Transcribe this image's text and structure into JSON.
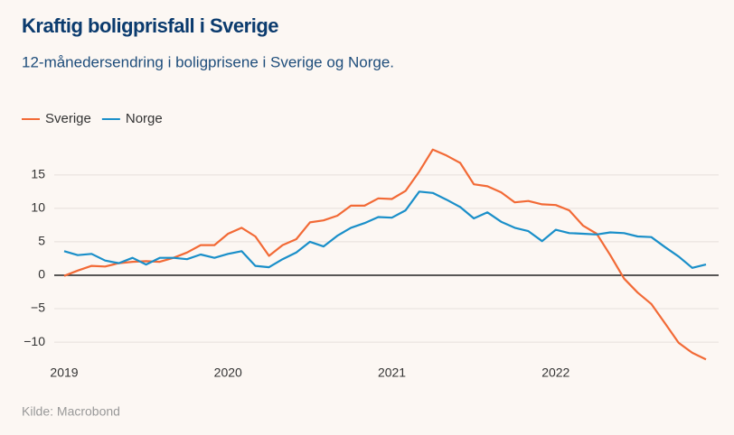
{
  "chart_data": {
    "type": "line",
    "title": "Kraftig boligprisfall i Sverige",
    "subtitle": "12-månedersendring i boligprisene i Sverige og Norge.",
    "source": "Kilde: Macrobond",
    "x": [
      2019,
      2019.083,
      2019.167,
      2019.25,
      2019.333,
      2019.417,
      2019.5,
      2019.583,
      2019.667,
      2019.75,
      2019.833,
      2019.917,
      2020,
      2020.083,
      2020.167,
      2020.25,
      2020.333,
      2020.417,
      2020.5,
      2020.583,
      2020.667,
      2020.75,
      2020.833,
      2020.917,
      2021,
      2021.083,
      2021.167,
      2021.25,
      2021.333,
      2021.417,
      2021.5,
      2021.583,
      2021.667,
      2021.75,
      2021.833,
      2021.917,
      2022,
      2022.083,
      2022.167,
      2022.25,
      2022.333,
      2022.417,
      2022.5,
      2022.583,
      2022.667,
      2022.75,
      2022.833,
      2022.917
    ],
    "series": [
      {
        "name": "Sverige",
        "color": "#f26a36",
        "values": [
          -0.1,
          0.7,
          1.4,
          1.3,
          1.8,
          2.0,
          2.1,
          2.0,
          2.6,
          3.4,
          4.5,
          4.5,
          6.2,
          7.1,
          5.8,
          2.9,
          4.5,
          5.4,
          7.9,
          8.2,
          8.9,
          10.4,
          10.4,
          11.5,
          11.4,
          12.6,
          15.5,
          18.8,
          17.9,
          16.8,
          13.6,
          13.3,
          12.4,
          10.9,
          11.1,
          10.6,
          10.5,
          9.7,
          7.4,
          6.2,
          3.0,
          -0.5,
          -2.6,
          -4.3,
          -7.2,
          -10.1,
          -11.6,
          -12.6
        ]
      },
      {
        "name": "Norge",
        "color": "#1a8fc9",
        "values": [
          3.6,
          3.0,
          3.2,
          2.2,
          1.8,
          2.6,
          1.6,
          2.6,
          2.6,
          2.4,
          3.1,
          2.6,
          3.2,
          3.6,
          1.4,
          1.2,
          2.4,
          3.4,
          5.0,
          4.3,
          5.9,
          7.1,
          7.8,
          8.7,
          8.6,
          9.7,
          12.5,
          12.3,
          11.3,
          10.2,
          8.5,
          9.4,
          8.0,
          7.1,
          6.6,
          5.1,
          6.8,
          6.3,
          6.2,
          6.1,
          6.4,
          6.3,
          5.8,
          5.7,
          4.2,
          2.8,
          1.1,
          1.6
        ]
      }
    ],
    "xlim": [
      2019,
      2022.917
    ],
    "xticks": [
      2019,
      2020,
      2021,
      2022
    ],
    "ylim": [
      -13.5,
      17
    ],
    "yticks": [
      {
        "value": -10,
        "label": "−10"
      },
      {
        "value": -5,
        "label": "−5"
      },
      0,
      5,
      10,
      15
    ],
    "grid": true,
    "legend": "top-left"
  }
}
